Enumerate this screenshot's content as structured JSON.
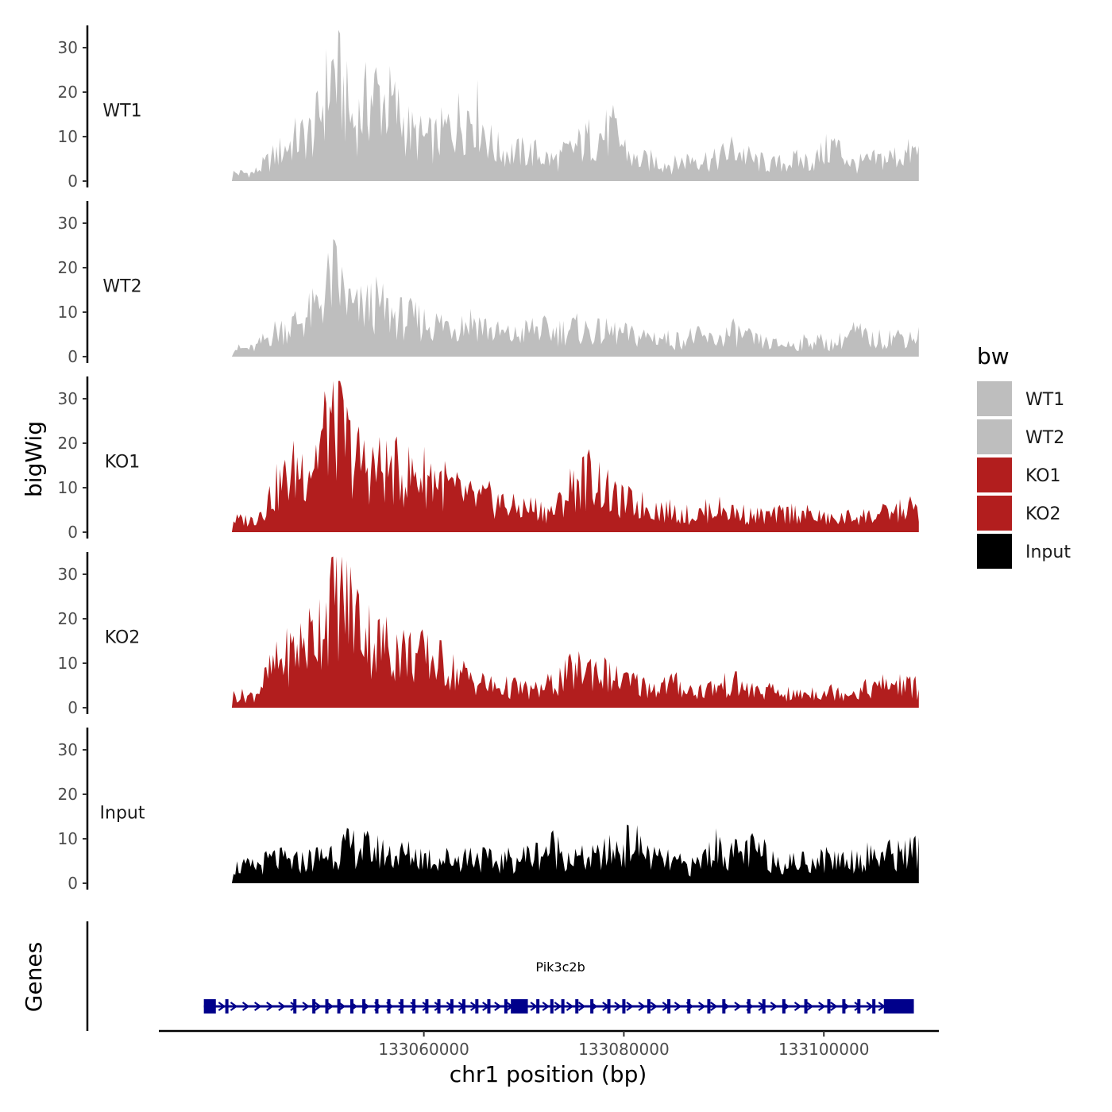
{
  "chart_data": {
    "type": "area",
    "xlabel": "chr1 position (bp)",
    "ylabel": "bigWig",
    "genes_label": "Genes",
    "xlim": [
      133033500,
      133111500
    ],
    "x_ticks": [
      133060000,
      133080000,
      133100000
    ],
    "x_tick_labels": [
      "133060000",
      "133080000",
      "133100000"
    ],
    "ylim": [
      0,
      35
    ],
    "y_ticks": [
      0,
      10,
      20,
      30
    ],
    "y_tick_labels": [
      "0",
      "10",
      "20",
      "30"
    ],
    "x": [
      133043000,
      133045000,
      133047000,
      133049000,
      133051000,
      133053000,
      133055000,
      133057000,
      133059000,
      133061000,
      133063000,
      133065000,
      133067000,
      133069000,
      133071000,
      133073000,
      133075000,
      133077000,
      133079000,
      133081000,
      133083000,
      133085000,
      133087000,
      133089000,
      133091000,
      133093000,
      133095000,
      133097000,
      133099000,
      133101000,
      133103000,
      133105000,
      133107000,
      133109000
    ],
    "tracks": [
      {
        "name": "WT1",
        "color": "#BEBEBE",
        "values": [
          2,
          6,
          10,
          12,
          28,
          14,
          22,
          18,
          11,
          10,
          14,
          18,
          8,
          7,
          7,
          5,
          8,
          11,
          12,
          5,
          5,
          4,
          6,
          5,
          8,
          5,
          4,
          5,
          5,
          9,
          4,
          5,
          6,
          7
        ]
      },
      {
        "name": "WT2",
        "color": "#BEBEBE",
        "values": [
          2,
          6,
          8,
          11,
          20,
          11,
          13,
          10,
          9,
          8,
          8,
          9,
          6,
          5,
          7,
          6,
          7,
          6,
          6,
          5,
          5,
          4,
          5,
          4,
          6,
          4,
          3,
          3,
          4,
          3,
          6,
          4,
          5,
          5
        ]
      },
      {
        "name": "KO1",
        "color": "#B21E1E",
        "values": [
          3,
          10,
          15,
          18,
          30,
          18,
          16,
          15,
          14,
          14,
          10,
          8,
          8,
          6,
          6,
          5,
          12,
          14,
          8,
          7,
          6,
          5,
          4,
          6,
          5,
          4,
          4,
          5,
          4,
          3,
          4,
          4,
          5,
          6
        ]
      },
      {
        "name": "KO2",
        "color": "#B21E1E",
        "values": [
          3,
          10,
          14,
          18,
          28,
          24,
          16,
          15,
          13,
          12,
          9,
          7,
          5,
          5,
          4,
          6,
          9,
          10,
          7,
          6,
          5,
          6,
          4,
          5,
          6,
          4,
          4,
          3,
          4,
          4,
          4,
          5,
          6,
          5
        ]
      },
      {
        "name": "Input",
        "color": "#000000",
        "values": [
          4,
          6,
          5,
          6,
          8,
          9,
          8,
          7,
          7,
          6,
          6,
          7,
          5,
          6,
          7,
          9,
          6,
          6,
          8,
          10,
          6,
          5,
          4,
          9,
          7,
          8,
          6,
          5,
          6,
          6,
          6,
          7,
          7,
          8
        ]
      }
    ],
    "legend": {
      "title": "bw",
      "position": "right",
      "entries": [
        {
          "label": "WT1",
          "color": "#BEBEBE"
        },
        {
          "label": "WT2",
          "color": "#BEBEBE"
        },
        {
          "label": "KO1",
          "color": "#B21E1E"
        },
        {
          "label": "KO2",
          "color": "#B21E1E"
        },
        {
          "label": "Input",
          "color": "#000000"
        }
      ]
    },
    "gene": {
      "name": "Pik3c2b",
      "strand": "+",
      "color": "#00008B",
      "start": 133038000,
      "end": 133109000,
      "exons": [
        133038800,
        133040300,
        133047100,
        133049000,
        133050300,
        133051500,
        133052800,
        133054000,
        133055300,
        133056500,
        133057800,
        133059000,
        133060300,
        133061500,
        133062800,
        133064000,
        133065300,
        133066500,
        133068200,
        133071400,
        133072800,
        133073900,
        133075300,
        133076800,
        133078500,
        133080000,
        133082500,
        133084500,
        133086500,
        133088500,
        133090000,
        133092500,
        133094000,
        133096000,
        133098200,
        133100500,
        133102000,
        133103500,
        133105000,
        133107000,
        133108500
      ],
      "utr5": [
        133038000,
        133039200
      ],
      "utr3": [
        133106000,
        133109000
      ],
      "coding_block": [
        133068700,
        133070400
      ]
    }
  }
}
